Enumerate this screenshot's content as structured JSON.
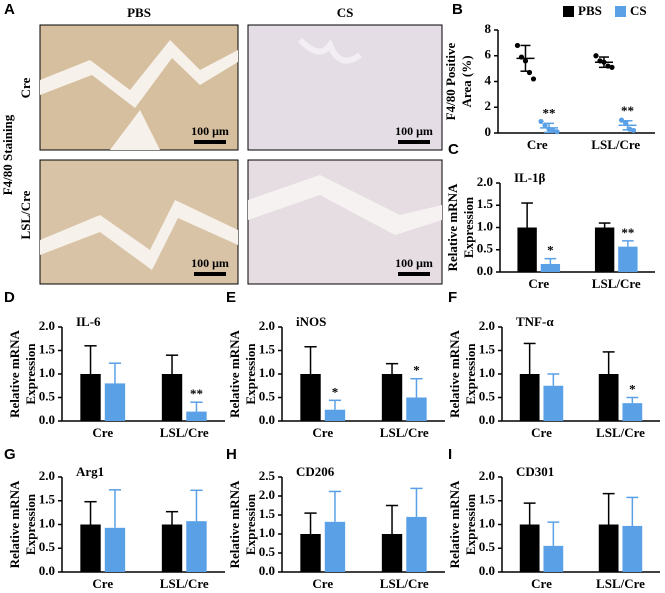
{
  "panel_a": {
    "label": "A",
    "columns": [
      "PBS",
      "CS"
    ],
    "rows": [
      "Cre",
      "LSL/Cre"
    ],
    "ylabel": "F4/80 Staining",
    "scale_bars": [
      "100 μm",
      "100 μm",
      "100 μm",
      "100 μm"
    ]
  },
  "chart_data": [
    {
      "panel": "B",
      "type": "scatter",
      "ylabel": [
        "F4/80 Positive",
        "Area (%)"
      ],
      "categories": [
        "Cre",
        "LSL/Cre"
      ],
      "ylim": [
        0,
        8
      ],
      "yticks": [
        0,
        2,
        4,
        6,
        8
      ],
      "legend": "top-right",
      "series": [
        {
          "name": "PBS",
          "color": "#000000",
          "points": [
            [
              6.8,
              5.9,
              5.6,
              4.7,
              4.2
            ],
            [
              6.0,
              5.6,
              5.5,
              5.2,
              5.1
            ]
          ],
          "means": [
            5.8,
            5.5
          ],
          "errors": [
            1.0,
            0.4
          ],
          "significance": [
            null,
            null
          ]
        },
        {
          "name": "CS",
          "color": "#5aa0e6",
          "points": [
            [
              0.9,
              0.6,
              0.3,
              0.2,
              0.1
            ],
            [
              1.0,
              0.8,
              0.3,
              0.2
            ]
          ],
          "means": [
            0.4,
            0.6
          ],
          "errors": [
            0.35,
            0.35
          ],
          "significance": [
            "**",
            "**"
          ]
        }
      ]
    },
    {
      "panel": "C",
      "type": "bar",
      "title": "IL-1β",
      "ylabel": [
        "Relative mRNA",
        "Expression"
      ],
      "categories": [
        "Cre",
        "LSL/Cre"
      ],
      "ylim": [
        0,
        2
      ],
      "yticks": [
        {
          "value": 0,
          "label": "0.0"
        },
        {
          "value": 0.5,
          "label": "0.5"
        },
        {
          "value": 1,
          "label": "1.0"
        },
        {
          "value": 1.5,
          "label": "1.5"
        },
        {
          "value": 2,
          "label": "2.0"
        }
      ],
      "series": [
        {
          "name": "PBS",
          "color": "#000000",
          "values": [
            1.0,
            1.0
          ],
          "errors": [
            0.55,
            0.1
          ],
          "significance": [
            null,
            null
          ]
        },
        {
          "name": "CS",
          "color": "#5aa0e6",
          "values": [
            0.18,
            0.57
          ],
          "errors": [
            0.12,
            0.13
          ],
          "significance": [
            "*",
            "**"
          ]
        }
      ]
    },
    {
      "panel": "D",
      "type": "bar",
      "title": "IL-6",
      "ylabel": [
        "Relative mRNA",
        "Expression"
      ],
      "categories": [
        "Cre",
        "LSL/Cre"
      ],
      "ylim": [
        0,
        2
      ],
      "yticks": [
        {
          "value": 0,
          "label": "0.0"
        },
        {
          "value": 0.5,
          "label": "0.5"
        },
        {
          "value": 1,
          "label": "1.0"
        },
        {
          "value": 1.5,
          "label": "1.5"
        },
        {
          "value": 2,
          "label": "2.0"
        }
      ],
      "series": [
        {
          "name": "PBS",
          "color": "#000000",
          "values": [
            1.0,
            1.0
          ],
          "errors": [
            0.6,
            0.4
          ],
          "significance": [
            null,
            null
          ]
        },
        {
          "name": "CS",
          "color": "#5aa0e6",
          "values": [
            0.8,
            0.2
          ],
          "errors": [
            0.43,
            0.2
          ],
          "significance": [
            null,
            "**"
          ]
        }
      ]
    },
    {
      "panel": "E",
      "type": "bar",
      "title": "iNOS",
      "ylabel": [
        "Relative mRNA",
        "Expression"
      ],
      "categories": [
        "Cre",
        "LSL/Cre"
      ],
      "ylim": [
        0,
        2
      ],
      "yticks": [
        {
          "value": 0,
          "label": "0.0"
        },
        {
          "value": 0.5,
          "label": "0.5"
        },
        {
          "value": 1,
          "label": "1.0"
        },
        {
          "value": 1.5,
          "label": "1.5"
        },
        {
          "value": 2,
          "label": "2.0"
        }
      ],
      "series": [
        {
          "name": "PBS",
          "color": "#000000",
          "values": [
            1.0,
            1.0
          ],
          "errors": [
            0.58,
            0.22
          ],
          "significance": [
            null,
            null
          ]
        },
        {
          "name": "CS",
          "color": "#5aa0e6",
          "values": [
            0.24,
            0.5
          ],
          "errors": [
            0.2,
            0.4
          ],
          "significance": [
            "*",
            "*"
          ]
        }
      ]
    },
    {
      "panel": "F",
      "type": "bar",
      "title": "TNF-α",
      "ylabel": [
        "Relative mRNA",
        "Expression"
      ],
      "categories": [
        "Cre",
        "LSL/Cre"
      ],
      "ylim": [
        0,
        2
      ],
      "yticks": [
        {
          "value": 0,
          "label": "0.0"
        },
        {
          "value": 0.5,
          "label": "0.5"
        },
        {
          "value": 1,
          "label": "1.0"
        },
        {
          "value": 1.5,
          "label": "1.5"
        },
        {
          "value": 2,
          "label": "2.0"
        }
      ],
      "series": [
        {
          "name": "PBS",
          "color": "#000000",
          "values": [
            1.0,
            1.0
          ],
          "errors": [
            0.65,
            0.47
          ],
          "significance": [
            null,
            null
          ]
        },
        {
          "name": "CS",
          "color": "#5aa0e6",
          "values": [
            0.75,
            0.38
          ],
          "errors": [
            0.25,
            0.12
          ],
          "significance": [
            null,
            "*"
          ]
        }
      ]
    },
    {
      "panel": "G",
      "type": "bar",
      "title": "Arg1",
      "ylabel": [
        "Relative mRNA",
        "Expression"
      ],
      "categories": [
        "Cre",
        "LSL/Cre"
      ],
      "ylim": [
        0,
        2
      ],
      "yticks": [
        {
          "value": 0,
          "label": "0.0"
        },
        {
          "value": 0.5,
          "label": "0.5"
        },
        {
          "value": 1,
          "label": "1.0"
        },
        {
          "value": 1.5,
          "label": "1.5"
        },
        {
          "value": 2,
          "label": "2.0"
        }
      ],
      "series": [
        {
          "name": "PBS",
          "color": "#000000",
          "values": [
            1.0,
            1.0
          ],
          "errors": [
            0.48,
            0.27
          ],
          "significance": [
            null,
            null
          ]
        },
        {
          "name": "CS",
          "color": "#5aa0e6",
          "values": [
            0.93,
            1.07
          ],
          "errors": [
            0.8,
            0.65
          ],
          "significance": [
            null,
            null
          ]
        }
      ]
    },
    {
      "panel": "H",
      "type": "bar",
      "title": "CD206",
      "ylabel": [
        "Relative mRNA",
        "Expression"
      ],
      "categories": [
        "Cre",
        "LSL/Cre"
      ],
      "ylim": [
        0,
        2.5
      ],
      "yticks": [
        {
          "value": 0,
          "label": "0.0"
        },
        {
          "value": 0.5,
          "label": "0.5"
        },
        {
          "value": 1,
          "label": "1.0"
        },
        {
          "value": 1.5,
          "label": "1.5"
        },
        {
          "value": 2,
          "label": "2.0"
        },
        {
          "value": 2.5,
          "label": "2.5"
        }
      ],
      "series": [
        {
          "name": "PBS",
          "color": "#000000",
          "values": [
            1.0,
            1.0
          ],
          "errors": [
            0.55,
            0.75
          ],
          "significance": [
            null,
            null
          ]
        },
        {
          "name": "CS",
          "color": "#5aa0e6",
          "values": [
            1.32,
            1.45
          ],
          "errors": [
            0.8,
            0.75
          ],
          "significance": [
            null,
            null
          ]
        }
      ]
    },
    {
      "panel": "I",
      "type": "bar",
      "title": "CD301",
      "ylabel": [
        "Relative mRNA",
        "Expression"
      ],
      "categories": [
        "Cre",
        "LSL/Cre"
      ],
      "ylim": [
        0,
        2
      ],
      "yticks": [
        {
          "value": 0,
          "label": "0.0"
        },
        {
          "value": 0.5,
          "label": "0.5"
        },
        {
          "value": 1,
          "label": "1.0"
        },
        {
          "value": 1.5,
          "label": "1.5"
        },
        {
          "value": 2,
          "label": "2.0"
        }
      ],
      "series": [
        {
          "name": "PBS",
          "color": "#000000",
          "values": [
            1.0,
            1.0
          ],
          "errors": [
            0.45,
            0.65
          ],
          "significance": [
            null,
            null
          ]
        },
        {
          "name": "CS",
          "color": "#5aa0e6",
          "values": [
            0.55,
            0.97
          ],
          "errors": [
            0.5,
            0.6
          ],
          "significance": [
            null,
            null
          ]
        }
      ]
    }
  ]
}
